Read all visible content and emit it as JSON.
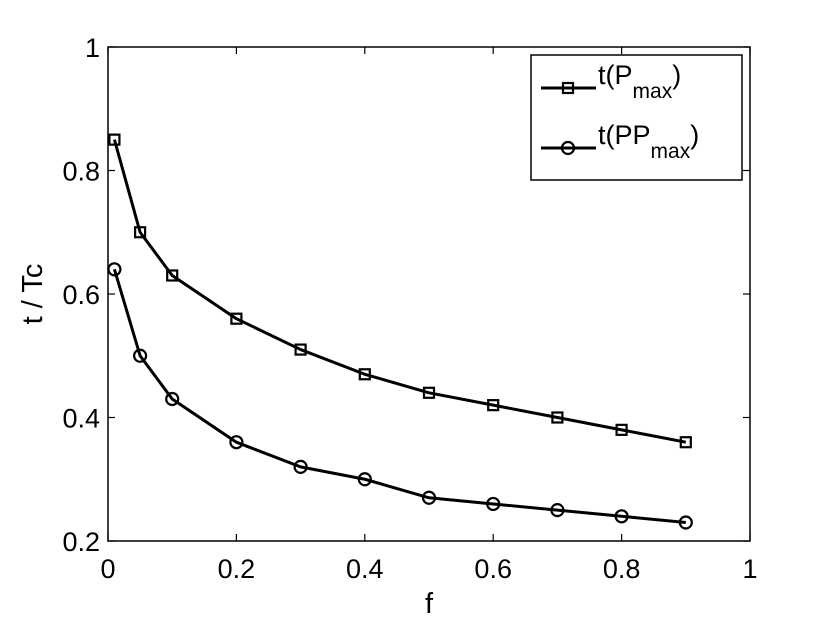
{
  "chart_data": {
    "type": "line",
    "xlabel": "f",
    "ylabel": "t / Tc",
    "xlim": [
      0,
      1
    ],
    "ylim": [
      0.2,
      1
    ],
    "x_ticks": [
      0,
      0.2,
      0.4,
      0.6,
      0.8,
      1
    ],
    "x_tick_labels": [
      "0",
      "0.2",
      "0.4",
      "0.6",
      "0.8",
      "1"
    ],
    "y_ticks": [
      0.2,
      0.4,
      0.6,
      0.8,
      1
    ],
    "y_tick_labels": [
      "0.2",
      "0.4",
      "0.6",
      "0.8",
      "1"
    ],
    "grid": false,
    "legend_position": "top-right",
    "x": [
      0.01,
      0.05,
      0.1,
      0.2,
      0.3,
      0.4,
      0.5,
      0.6,
      0.7,
      0.8,
      0.9
    ],
    "series": [
      {
        "name": "t(Pmax)",
        "legend_main": "t(P",
        "legend_sub": "max",
        "legend_close": ")",
        "marker": "square",
        "color": "#000000",
        "values": [
          0.85,
          0.7,
          0.63,
          0.56,
          0.51,
          0.47,
          0.44,
          0.42,
          0.4,
          0.38,
          0.36
        ]
      },
      {
        "name": "t(PPmax)",
        "legend_main": "t(PP",
        "legend_sub": "max",
        "legend_close": ")",
        "marker": "circle",
        "color": "#000000",
        "values": [
          0.64,
          0.5,
          0.43,
          0.36,
          0.32,
          0.3,
          0.27,
          0.26,
          0.25,
          0.24,
          0.23
        ]
      }
    ]
  }
}
